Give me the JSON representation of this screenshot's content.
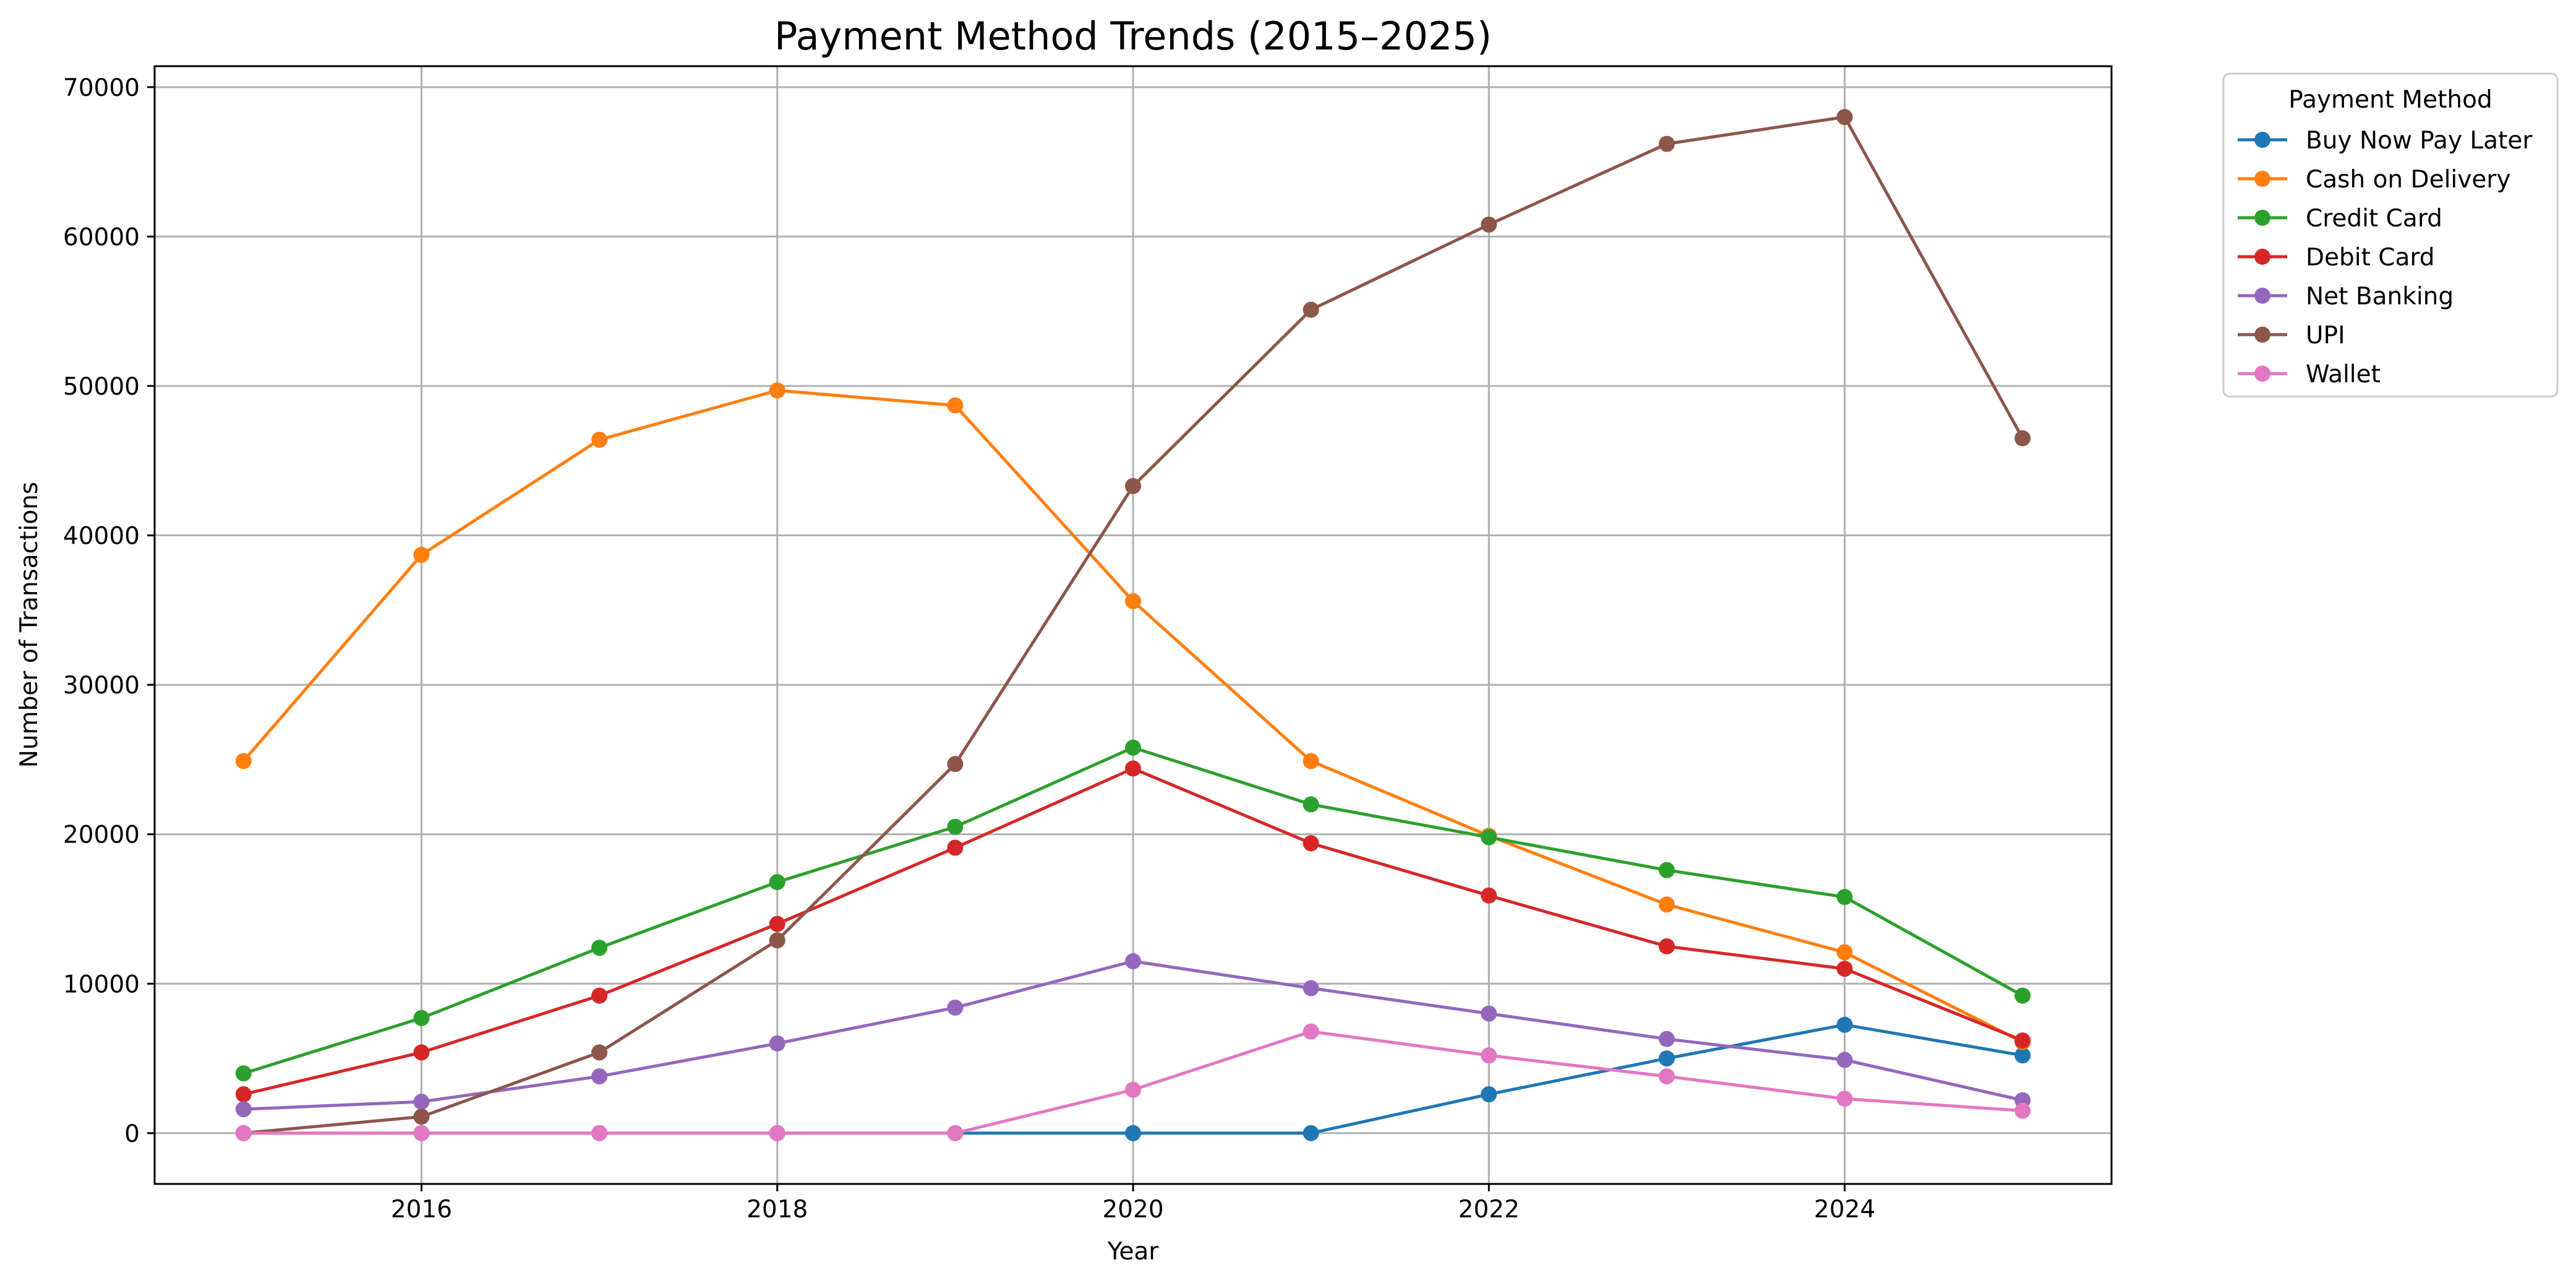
{
  "chart_data": {
    "type": "line",
    "title": "Payment Method Trends (2015–2025)",
    "xlabel": "Year",
    "ylabel": "Number of Transactions",
    "xlim": [
      2014.5,
      2025.5
    ],
    "ylim": [
      -3400,
      71400
    ],
    "xticks": [
      2016,
      2018,
      2020,
      2022,
      2024
    ],
    "yticks": [
      0,
      10000,
      20000,
      30000,
      40000,
      50000,
      60000,
      70000
    ],
    "grid": true,
    "legend": {
      "title": "Payment Method",
      "placement": "outside-top-right"
    },
    "x": [
      2015,
      2016,
      2017,
      2018,
      2019,
      2020,
      2021,
      2022,
      2023,
      2024,
      2025
    ],
    "series": [
      {
        "name": "Buy Now Pay Later",
        "color": "#1f77b4",
        "values": [
          0,
          0,
          0,
          0,
          0,
          0,
          0,
          2600,
          5000,
          7250,
          5200
        ]
      },
      {
        "name": "Cash on Delivery",
        "color": "#ff7f0e",
        "values": [
          24900,
          38700,
          46400,
          49700,
          48700,
          35600,
          24900,
          19900,
          15300,
          12100,
          6100
        ]
      },
      {
        "name": "Credit Card",
        "color": "#2ca02c",
        "values": [
          4000,
          7700,
          12400,
          16800,
          20500,
          25800,
          22000,
          19800,
          17600,
          15800,
          9200
        ]
      },
      {
        "name": "Debit Card",
        "color": "#d62728",
        "values": [
          2600,
          5400,
          9200,
          14000,
          19100,
          24400,
          19400,
          15900,
          12500,
          11000,
          6200
        ]
      },
      {
        "name": "Net Banking",
        "color": "#9467bd",
        "values": [
          1600,
          2100,
          3800,
          6000,
          8400,
          11500,
          9700,
          8000,
          6300,
          4900,
          2200
        ]
      },
      {
        "name": "UPI",
        "color": "#8c564b",
        "values": [
          0,
          1100,
          5400,
          12900,
          24700,
          43300,
          55100,
          60800,
          66200,
          68000,
          46500
        ]
      },
      {
        "name": "Wallet",
        "color": "#e377c2",
        "values": [
          0,
          0,
          0,
          0,
          0,
          2900,
          6800,
          5200,
          3800,
          2300,
          1500
        ]
      }
    ]
  }
}
